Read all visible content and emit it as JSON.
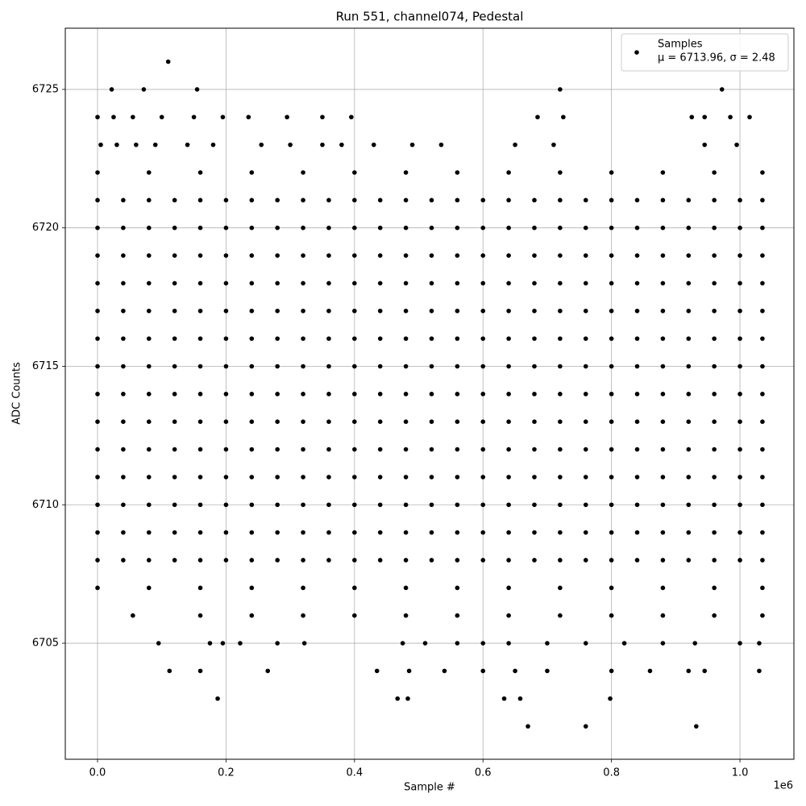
{
  "chart_data": {
    "type": "scatter",
    "title": "Run 551, channel074, Pedestal",
    "x_label": "Sample #",
    "y_label": "ADC Counts",
    "x_offset_label": "1e6",
    "xlim": [
      -50200,
      1084000
    ],
    "ylim": [
      6700.81,
      6727.21
    ],
    "xticks": [
      {
        "value": 0,
        "label": "0.0"
      },
      {
        "value": 200000,
        "label": "0.2"
      },
      {
        "value": 400000,
        "label": "0.4"
      },
      {
        "value": 600000,
        "label": "0.6"
      },
      {
        "value": 800000,
        "label": "0.8"
      },
      {
        "value": 1000000,
        "label": "1.0"
      }
    ],
    "yticks": [
      6705,
      6710,
      6715,
      6720,
      6725
    ],
    "grid": true,
    "legend": "upper right",
    "legend_subtitle": "μ = 6713.96, σ = 2.48",
    "series": [
      {
        "name": "Samples",
        "color": "#000000",
        "x": [
          0,
          40000,
          80000,
          120000,
          160000,
          200000,
          240000,
          280000,
          320000,
          360000,
          400000,
          440000,
          480000,
          520000,
          560000,
          600000,
          640000,
          680000,
          720000,
          760000,
          800000,
          840000,
          880000,
          920000,
          960000,
          1000000,
          1035000,
          0,
          40000,
          80000,
          120000,
          160000,
          200000,
          240000,
          280000,
          320000,
          360000,
          400000,
          440000,
          480000,
          520000,
          560000,
          600000,
          640000,
          680000,
          720000,
          760000,
          800000,
          840000,
          880000,
          920000,
          960000,
          1000000,
          1035000,
          0,
          40000,
          80000,
          120000,
          160000,
          200000,
          240000,
          280000,
          320000,
          360000,
          400000,
          440000,
          480000,
          520000,
          560000,
          600000,
          640000,
          680000,
          720000,
          760000,
          800000,
          840000,
          880000,
          920000,
          960000,
          1000000,
          1035000,
          0,
          40000,
          80000,
          120000,
          160000,
          200000,
          240000,
          280000,
          320000,
          360000,
          400000,
          440000,
          480000,
          520000,
          560000,
          600000,
          640000,
          680000,
          720000,
          760000,
          800000,
          840000,
          880000,
          920000,
          960000,
          1000000,
          1035000,
          0,
          40000,
          80000,
          120000,
          160000,
          200000,
          240000,
          280000,
          320000,
          360000,
          400000,
          440000,
          480000,
          520000,
          560000,
          600000,
          640000,
          680000,
          720000,
          760000,
          800000,
          840000,
          880000,
          920000,
          960000,
          1000000,
          1035000,
          0,
          40000,
          80000,
          120000,
          160000,
          200000,
          240000,
          280000,
          320000,
          360000,
          400000,
          440000,
          480000,
          520000,
          560000,
          600000,
          640000,
          680000,
          720000,
          760000,
          800000,
          840000,
          880000,
          920000,
          960000,
          1000000,
          1035000,
          0,
          40000,
          80000,
          120000,
          160000,
          200000,
          240000,
          280000,
          320000,
          360000,
          400000,
          440000,
          480000,
          520000,
          560000,
          600000,
          640000,
          680000,
          720000,
          760000,
          800000,
          840000,
          880000,
          920000,
          960000,
          1000000,
          1035000,
          0,
          40000,
          80000,
          120000,
          160000,
          200000,
          240000,
          280000,
          320000,
          360000,
          400000,
          440000,
          480000,
          520000,
          560000,
          600000,
          640000,
          680000,
          720000,
          760000,
          800000,
          840000,
          880000,
          920000,
          960000,
          1000000,
          1035000,
          0,
          40000,
          80000,
          120000,
          160000,
          200000,
          240000,
          280000,
          320000,
          360000,
          400000,
          440000,
          480000,
          520000,
          560000,
          600000,
          640000,
          680000,
          720000,
          760000,
          800000,
          840000,
          880000,
          920000,
          960000,
          1000000,
          1035000,
          0,
          40000,
          80000,
          120000,
          160000,
          200000,
          240000,
          280000,
          320000,
          360000,
          400000,
          440000,
          480000,
          520000,
          560000,
          600000,
          640000,
          680000,
          720000,
          760000,
          800000,
          840000,
          880000,
          920000,
          960000,
          1000000,
          1035000,
          0,
          40000,
          80000,
          120000,
          160000,
          200000,
          240000,
          280000,
          320000,
          360000,
          400000,
          440000,
          480000,
          520000,
          560000,
          600000,
          640000,
          680000,
          720000,
          760000,
          800000,
          840000,
          880000,
          920000,
          960000,
          1000000,
          1035000,
          0,
          40000,
          80000,
          120000,
          160000,
          200000,
          240000,
          280000,
          320000,
          360000,
          400000,
          440000,
          480000,
          520000,
          560000,
          600000,
          640000,
          680000,
          720000,
          760000,
          800000,
          840000,
          880000,
          920000,
          960000,
          1000000,
          1035000,
          0,
          40000,
          80000,
          120000,
          160000,
          200000,
          240000,
          280000,
          320000,
          360000,
          400000,
          440000,
          480000,
          520000,
          560000,
          600000,
          640000,
          680000,
          720000,
          760000,
          800000,
          840000,
          880000,
          920000,
          960000,
          1000000,
          1035000,
          0,
          40000,
          80000,
          120000,
          160000,
          200000,
          240000,
          280000,
          320000,
          360000,
          400000,
          440000,
          480000,
          520000,
          560000,
          600000,
          640000,
          680000,
          720000,
          760000,
          800000,
          840000,
          880000,
          920000,
          960000,
          1000000,
          1035000,
          0,
          80000,
          160000,
          240000,
          320000,
          400000,
          480000,
          560000,
          640000,
          720000,
          800000,
          880000,
          960000,
          1035000,
          0,
          80000,
          160000,
          240000,
          320000,
          400000,
          480000,
          560000,
          640000,
          720000,
          800000,
          880000,
          960000,
          1035000,
          55000,
          160000,
          240000,
          320000,
          400000,
          480000,
          560000,
          640000,
          720000,
          800000,
          880000,
          960000,
          1035000,
          5000,
          30000,
          60000,
          90000,
          140000,
          180000,
          255000,
          300000,
          350000,
          380000,
          430000,
          490000,
          535000,
          650000,
          710000,
          945000,
          995000,
          0,
          25000,
          55000,
          100000,
          150000,
          195000,
          235000,
          295000,
          350000,
          395000,
          685000,
          725000,
          925000,
          945000,
          985000,
          1015000,
          95000,
          175000,
          195000,
          222000,
          280000,
          322000,
          475000,
          510000,
          560000,
          600000,
          640000,
          700000,
          760000,
          820000,
          880000,
          930000,
          1000000,
          1030000,
          112000,
          160000,
          265000,
          435000,
          485000,
          540000,
          600000,
          650000,
          700000,
          800000,
          860000,
          920000,
          945000,
          1030000,
          187000,
          467000,
          483000,
          633000,
          658000,
          798000,
          670000,
          760000,
          932000,
          22000,
          72000,
          155000,
          720000,
          972000,
          110000
        ],
        "values": [
          6721,
          6721,
          6721,
          6721,
          6721,
          6721,
          6721,
          6721,
          6721,
          6721,
          6721,
          6721,
          6721,
          6721,
          6721,
          6721,
          6721,
          6721,
          6721,
          6721,
          6721,
          6721,
          6721,
          6721,
          6721,
          6721,
          6721,
          6720,
          6720,
          6720,
          6720,
          6720,
          6720,
          6720,
          6720,
          6720,
          6720,
          6720,
          6720,
          6720,
          6720,
          6720,
          6720,
          6720,
          6720,
          6720,
          6720,
          6720,
          6720,
          6720,
          6720,
          6720,
          6720,
          6720,
          6719,
          6719,
          6719,
          6719,
          6719,
          6719,
          6719,
          6719,
          6719,
          6719,
          6719,
          6719,
          6719,
          6719,
          6719,
          6719,
          6719,
          6719,
          6719,
          6719,
          6719,
          6719,
          6719,
          6719,
          6719,
          6719,
          6719,
          6718,
          6718,
          6718,
          6718,
          6718,
          6718,
          6718,
          6718,
          6718,
          6718,
          6718,
          6718,
          6718,
          6718,
          6718,
          6718,
          6718,
          6718,
          6718,
          6718,
          6718,
          6718,
          6718,
          6718,
          6718,
          6718,
          6718,
          6717,
          6717,
          6717,
          6717,
          6717,
          6717,
          6717,
          6717,
          6717,
          6717,
          6717,
          6717,
          6717,
          6717,
          6717,
          6717,
          6717,
          6717,
          6717,
          6717,
          6717,
          6717,
          6717,
          6717,
          6717,
          6717,
          6717,
          6716,
          6716,
          6716,
          6716,
          6716,
          6716,
          6716,
          6716,
          6716,
          6716,
          6716,
          6716,
          6716,
          6716,
          6716,
          6716,
          6716,
          6716,
          6716,
          6716,
          6716,
          6716,
          6716,
          6716,
          6716,
          6716,
          6716,
          6715,
          6715,
          6715,
          6715,
          6715,
          6715,
          6715,
          6715,
          6715,
          6715,
          6715,
          6715,
          6715,
          6715,
          6715,
          6715,
          6715,
          6715,
          6715,
          6715,
          6715,
          6715,
          6715,
          6715,
          6715,
          6715,
          6715,
          6714,
          6714,
          6714,
          6714,
          6714,
          6714,
          6714,
          6714,
          6714,
          6714,
          6714,
          6714,
          6714,
          6714,
          6714,
          6714,
          6714,
          6714,
          6714,
          6714,
          6714,
          6714,
          6714,
          6714,
          6714,
          6714,
          6714,
          6713,
          6713,
          6713,
          6713,
          6713,
          6713,
          6713,
          6713,
          6713,
          6713,
          6713,
          6713,
          6713,
          6713,
          6713,
          6713,
          6713,
          6713,
          6713,
          6713,
          6713,
          6713,
          6713,
          6713,
          6713,
          6713,
          6713,
          6712,
          6712,
          6712,
          6712,
          6712,
          6712,
          6712,
          6712,
          6712,
          6712,
          6712,
          6712,
          6712,
          6712,
          6712,
          6712,
          6712,
          6712,
          6712,
          6712,
          6712,
          6712,
          6712,
          6712,
          6712,
          6712,
          6712,
          6711,
          6711,
          6711,
          6711,
          6711,
          6711,
          6711,
          6711,
          6711,
          6711,
          6711,
          6711,
          6711,
          6711,
          6711,
          6711,
          6711,
          6711,
          6711,
          6711,
          6711,
          6711,
          6711,
          6711,
          6711,
          6711,
          6711,
          6710,
          6710,
          6710,
          6710,
          6710,
          6710,
          6710,
          6710,
          6710,
          6710,
          6710,
          6710,
          6710,
          6710,
          6710,
          6710,
          6710,
          6710,
          6710,
          6710,
          6710,
          6710,
          6710,
          6710,
          6710,
          6710,
          6710,
          6709,
          6709,
          6709,
          6709,
          6709,
          6709,
          6709,
          6709,
          6709,
          6709,
          6709,
          6709,
          6709,
          6709,
          6709,
          6709,
          6709,
          6709,
          6709,
          6709,
          6709,
          6709,
          6709,
          6709,
          6709,
          6709,
          6709,
          6708,
          6708,
          6708,
          6708,
          6708,
          6708,
          6708,
          6708,
          6708,
          6708,
          6708,
          6708,
          6708,
          6708,
          6708,
          6708,
          6708,
          6708,
          6708,
          6708,
          6708,
          6708,
          6708,
          6708,
          6708,
          6708,
          6708,
          6722,
          6722,
          6722,
          6722,
          6722,
          6722,
          6722,
          6722,
          6722,
          6722,
          6722,
          6722,
          6722,
          6722,
          6707,
          6707,
          6707,
          6707,
          6707,
          6707,
          6707,
          6707,
          6707,
          6707,
          6707,
          6707,
          6707,
          6707,
          6706,
          6706,
          6706,
          6706,
          6706,
          6706,
          6706,
          6706,
          6706,
          6706,
          6706,
          6706,
          6706,
          6723,
          6723,
          6723,
          6723,
          6723,
          6723,
          6723,
          6723,
          6723,
          6723,
          6723,
          6723,
          6723,
          6723,
          6723,
          6723,
          6723,
          6724,
          6724,
          6724,
          6724,
          6724,
          6724,
          6724,
          6724,
          6724,
          6724,
          6724,
          6724,
          6724,
          6724,
          6724,
          6724,
          6705,
          6705,
          6705,
          6705,
          6705,
          6705,
          6705,
          6705,
          6705,
          6705,
          6705,
          6705,
          6705,
          6705,
          6705,
          6705,
          6705,
          6705,
          6704,
          6704,
          6704,
          6704,
          6704,
          6704,
          6704,
          6704,
          6704,
          6704,
          6704,
          6704,
          6704,
          6704,
          6703,
          6703,
          6703,
          6703,
          6703,
          6703,
          6702,
          6702,
          6702,
          6725,
          6725,
          6725,
          6725,
          6725,
          6726
        ]
      }
    ]
  }
}
